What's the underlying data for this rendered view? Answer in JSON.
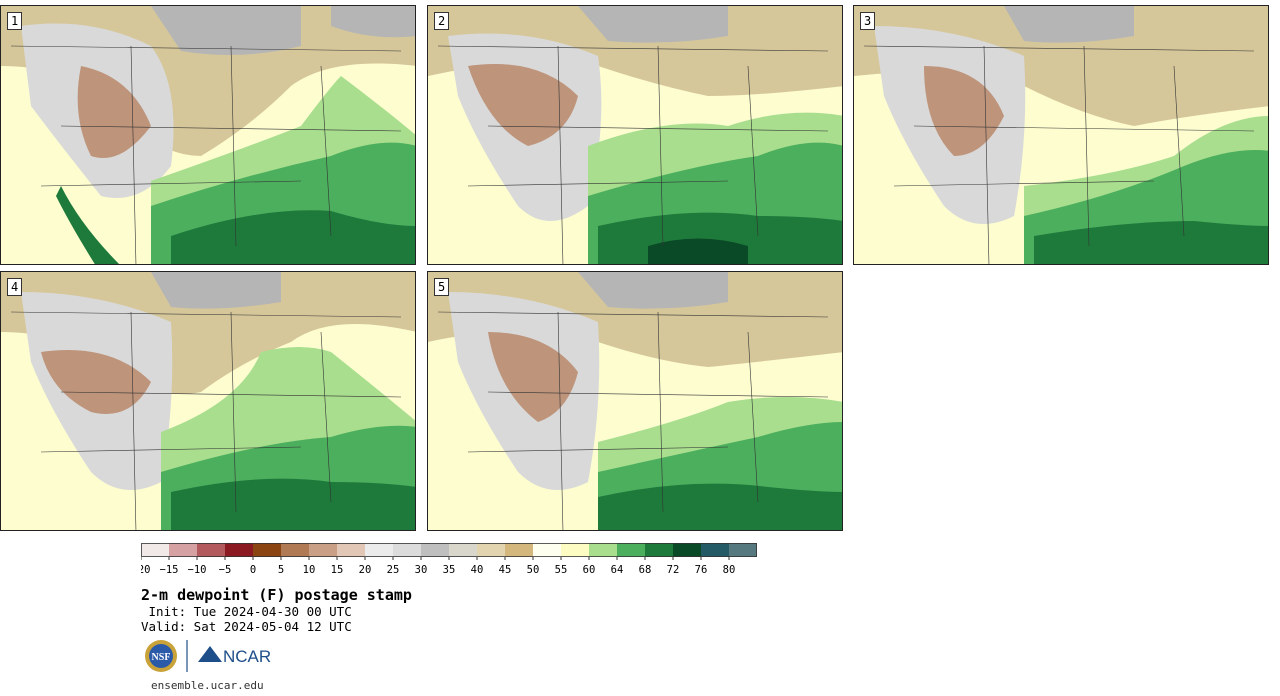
{
  "panels": [
    {
      "label": "1"
    },
    {
      "label": "2"
    },
    {
      "label": "3"
    },
    {
      "label": "4"
    },
    {
      "label": "5"
    }
  ],
  "colorbar": {
    "ticks": [
      "−20",
      "−15",
      "−10",
      "−5",
      "0",
      "5",
      "10",
      "15",
      "20",
      "25",
      "30",
      "35",
      "40",
      "45",
      "50",
      "55",
      "60",
      "64",
      "68",
      "72",
      "76",
      "80"
    ],
    "colors": [
      "#f1e9e8",
      "#d6a1a3",
      "#b35a5e",
      "#8c1a22",
      "#8b4513",
      "#b07a55",
      "#c99f85",
      "#e2c7b6",
      "#ececec",
      "#dcdcdc",
      "#bfbfbf",
      "#d9d6cc",
      "#e2d4ae",
      "#d4b77c",
      "#fffff0",
      "#fdfcc2",
      "#a8de8e",
      "#4caf5d",
      "#1e7a3b",
      "#0b4a27",
      "#245a66",
      "#55797e"
    ]
  },
  "title": "2-m dewpoint (F) postage stamp",
  "init": " Init: Tue 2024-04-30 00 UTC",
  "valid": "Valid: Sat 2024-05-04 12 UTC",
  "logos": {
    "nsf": "NSF",
    "ncar": "NCAR"
  },
  "site": "ensemble.ucar.edu"
}
